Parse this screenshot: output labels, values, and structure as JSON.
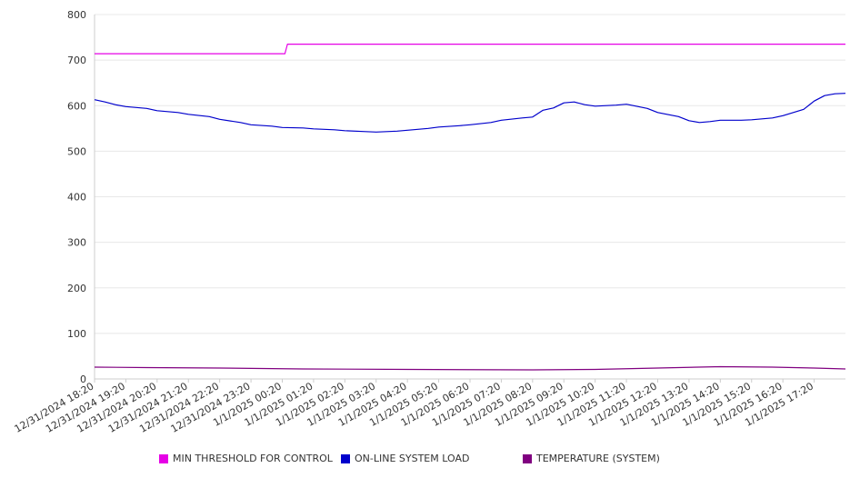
{
  "chart_data": {
    "type": "line",
    "title": "",
    "xlabel": "",
    "ylabel": "",
    "ylim": [
      0,
      800
    ],
    "yticks": [
      0,
      100,
      200,
      300,
      400,
      500,
      600,
      700,
      800
    ],
    "grid": "horizontal",
    "legend_position": "bottom",
    "x_range": [
      "12/31/2024 18:20",
      "1/1/2025 18:20"
    ],
    "xticks": [
      "12/31/2024 18:20",
      "12/31/2024 19:20",
      "12/31/2024 20:20",
      "12/31/2024 21:20",
      "12/31/2024 22:20",
      "12/31/2024 23:20",
      "1/1/2025 00:20",
      "1/1/2025 01:20",
      "1/1/2025 02:20",
      "1/1/2025 03:20",
      "1/1/2025 04:20",
      "1/1/2025 05:20",
      "1/1/2025 06:20",
      "1/1/2025 07:20",
      "1/1/2025 08:20",
      "1/1/2025 09:20",
      "1/1/2025 10:20",
      "1/1/2025 11:20",
      "1/1/2025 12:20",
      "1/1/2025 13:20",
      "1/1/2025 14:20",
      "1/1/2025 15:20",
      "1/1/2025 16:20",
      "1/1/2025 17:20"
    ],
    "series": [
      {
        "name": "MIN THRESHOLD FOR CONTROL",
        "color": "#e600e6",
        "step": true,
        "points": [
          [
            "12/31/2024 18:20",
            714
          ],
          [
            "1/1/2025 00:25",
            714
          ],
          [
            "1/1/2025 00:30",
            735
          ],
          [
            "1/1/2025 18:20",
            735
          ]
        ]
      },
      {
        "name": "ON-LINE SYSTEM LOAD",
        "color": "#0000cc",
        "step": false,
        "points": [
          [
            "12/31/2024 18:20",
            613
          ],
          [
            "12/31/2024 18:40",
            608
          ],
          [
            "12/31/2024 19:00",
            602
          ],
          [
            "12/31/2024 19:20",
            598
          ],
          [
            "12/31/2024 20:00",
            594
          ],
          [
            "12/31/2024 20:20",
            589
          ],
          [
            "12/31/2024 21:00",
            585
          ],
          [
            "12/31/2024 21:20",
            581
          ],
          [
            "12/31/2024 22:00",
            576
          ],
          [
            "12/31/2024 22:20",
            570
          ],
          [
            "12/31/2024 23:00",
            563
          ],
          [
            "12/31/2024 23:20",
            558
          ],
          [
            "1/1/2025 00:00",
            555
          ],
          [
            "1/1/2025 00:20",
            552
          ],
          [
            "1/1/2025 01:00",
            551
          ],
          [
            "1/1/2025 01:20",
            549
          ],
          [
            "1/1/2025 02:00",
            547
          ],
          [
            "1/1/2025 02:20",
            545
          ],
          [
            "1/1/2025 03:00",
            543
          ],
          [
            "1/1/2025 03:20",
            542
          ],
          [
            "1/1/2025 04:00",
            544
          ],
          [
            "1/1/2025 04:20",
            546
          ],
          [
            "1/1/2025 05:00",
            550
          ],
          [
            "1/1/2025 05:20",
            553
          ],
          [
            "1/1/2025 06:00",
            556
          ],
          [
            "1/1/2025 06:20",
            558
          ],
          [
            "1/1/2025 07:00",
            563
          ],
          [
            "1/1/2025 07:20",
            568
          ],
          [
            "1/1/2025 08:00",
            573
          ],
          [
            "1/1/2025 08:20",
            575
          ],
          [
            "1/1/2025 08:40",
            590
          ],
          [
            "1/1/2025 09:00",
            595
          ],
          [
            "1/1/2025 09:20",
            606
          ],
          [
            "1/1/2025 09:40",
            608
          ],
          [
            "1/1/2025 10:00",
            602
          ],
          [
            "1/1/2025 10:20",
            599
          ],
          [
            "1/1/2025 11:00",
            601
          ],
          [
            "1/1/2025 11:20",
            603
          ],
          [
            "1/1/2025 12:00",
            594
          ],
          [
            "1/1/2025 12:20",
            585
          ],
          [
            "1/1/2025 13:00",
            576
          ],
          [
            "1/1/2025 13:20",
            567
          ],
          [
            "1/1/2025 13:40",
            563
          ],
          [
            "1/1/2025 14:00",
            565
          ],
          [
            "1/1/2025 14:20",
            568
          ],
          [
            "1/1/2025 15:00",
            568
          ],
          [
            "1/1/2025 15:20",
            569
          ],
          [
            "1/1/2025 16:00",
            573
          ],
          [
            "1/1/2025 16:20",
            578
          ],
          [
            "1/1/2025 17:00",
            592
          ],
          [
            "1/1/2025 17:20",
            610
          ],
          [
            "1/1/2025 17:40",
            622
          ],
          [
            "1/1/2025 18:00",
            626
          ],
          [
            "1/1/2025 18:20",
            627
          ]
        ]
      },
      {
        "name": "TEMPERATURE (SYSTEM)",
        "color": "#800080",
        "step": false,
        "points": [
          [
            "12/31/2024 18:20",
            26
          ],
          [
            "12/31/2024 20:00",
            25
          ],
          [
            "12/31/2024 22:20",
            24
          ],
          [
            "1/1/2025 01:00",
            22
          ],
          [
            "1/1/2025 04:20",
            21
          ],
          [
            "1/1/2025 08:20",
            20
          ],
          [
            "1/1/2025 10:20",
            21
          ],
          [
            "1/1/2025 12:20",
            24
          ],
          [
            "1/1/2025 14:20",
            27
          ],
          [
            "1/1/2025 16:00",
            26
          ],
          [
            "1/1/2025 17:20",
            24
          ],
          [
            "1/1/2025 18:20",
            22
          ]
        ]
      }
    ]
  }
}
